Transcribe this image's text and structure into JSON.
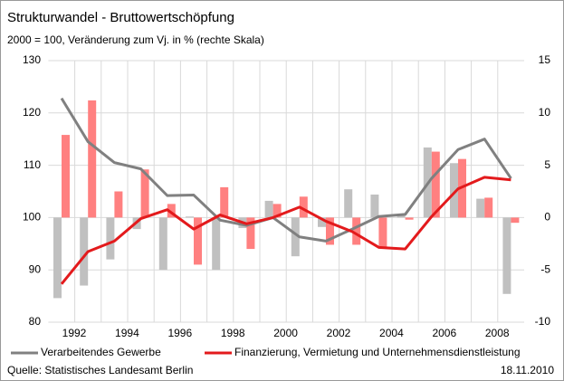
{
  "chart_data": {
    "type": "bar_line",
    "title": "Strukturwandel - Bruttowertschöpfung",
    "subtitle": "2000 = 100, Veränderung zum Vj. in % (rechte Skala)",
    "categories": [
      "1992",
      null,
      "1994",
      null,
      "1996",
      null,
      "1998",
      null,
      "2000",
      null,
      "2002",
      null,
      "2004",
      null,
      "2006",
      null,
      "2008",
      null
    ],
    "series": [
      {
        "name": "Verarbeitendes Gewerbe",
        "type": "line",
        "color": "#808080",
        "values": [
          122.8,
          114.5,
          110.5,
          109.3,
          104.2,
          104.3,
          99.5,
          98.5,
          100,
          96.3,
          95.5,
          97.8,
          100.2,
          100.6,
          107.5,
          113,
          115,
          107.5
        ]
      },
      {
        "name": "Finanzierung, Vermietung und Unternehmensdienstleistung",
        "type": "line",
        "color": "#e31a1c",
        "values": [
          87.3,
          93.5,
          95.5,
          99.8,
          101.5,
          97.8,
          100.5,
          98.8,
          100,
          102,
          99.3,
          97.3,
          94.3,
          94,
          100.2,
          105.5,
          107.7,
          107.2
        ]
      },
      {
        "type": "bar",
        "axis": "y2",
        "color": "#c0c0c0",
        "values": [
          -7.7,
          -6.5,
          -4,
          -1.1,
          -5,
          0.1,
          -5,
          -1,
          1.6,
          -3.7,
          -0.9,
          2.7,
          2.2,
          0.2,
          6.7,
          5.2,
          1.8,
          -7.3
        ]
      },
      {
        "type": "bar",
        "axis": "y2",
        "color": "#ff8080",
        "values": [
          7.9,
          11.2,
          2.5,
          4.6,
          1.3,
          -4.5,
          2.9,
          -3,
          1.3,
          2,
          -2.6,
          -2.6,
          -2.8,
          -0.2,
          6.3,
          5.6,
          1.9,
          -0.5
        ]
      }
    ],
    "ylim": [
      80,
      130
    ],
    "yticks": [
      80,
      90,
      100,
      110,
      120,
      130
    ],
    "y2lim": [
      -10,
      15
    ],
    "y2ticks": [
      -10,
      -5,
      0,
      5,
      10,
      15
    ],
    "grid": true,
    "source": "Quelle: Statistisches Landesamt Berlin",
    "date": "18.11.2010"
  }
}
